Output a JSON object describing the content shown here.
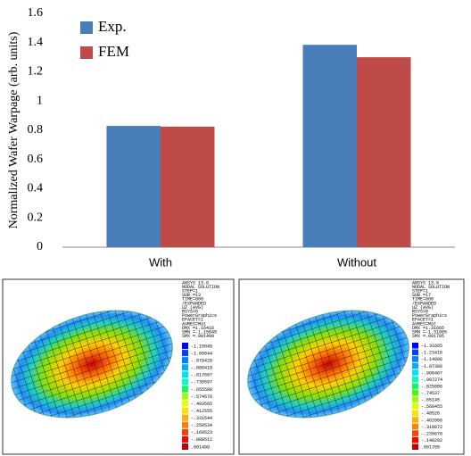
{
  "chart_data": {
    "type": "bar",
    "y_label": "Normalized Wafer Warpage (arb. units)",
    "categories": [
      "With",
      "Without"
    ],
    "series": [
      {
        "name": "Exp.",
        "color": "#4a7ebb",
        "values": [
          0.83,
          1.385
        ]
      },
      {
        "name": "FEM",
        "color": "#be4b48",
        "values": [
          0.825,
          1.3
        ]
      }
    ],
    "ylim": [
      0,
      1.6
    ],
    "yticks": [
      0,
      0.2,
      0.4,
      0.6,
      0.8,
      1,
      1.2,
      1.4,
      1.6
    ],
    "legend": "top-left"
  },
  "fem_panels": [
    {
      "header": [
        "ANSYS 13.0",
        "NODAL SOLUTION",
        "STEP=1",
        "SUB =13",
        "TIME=800",
        "/EXPANDED",
        "UZ        (AVG)",
        "RSYS=0",
        "PowerGraphics",
        "EFACET=1",
        "AVRES=Mat",
        "DMX =1.16416",
        "SMN =-1.15045",
        "SMX =.001499"
      ],
      "legend": [
        "-1.15045",
        "-1.06044",
        "-.979428",
        "-.888418",
        "-.817607",
        "-.736597",
        "-.655588",
        "-.574576",
        "-.493565",
        "-.412555",
        "-.331544",
        "-.250534",
        "-.169523",
        "-.088512",
        ".001499"
      ]
    },
    {
      "header": [
        "ANSYS 13.0",
        "NODAL SOLUTION",
        "STEP=1",
        "SUB =17",
        "TIME=800",
        "/EXPANDED",
        "UZ        (AVG)",
        "RSYS=0",
        "PowerGraphics",
        "EFACET=1",
        "AVRES=Mat",
        "DMX =1.31665",
        "SMN =-1.31665",
        "SMX =.001705"
      ],
      "legend": [
        "-1.31665",
        "-1.23416",
        "-1.14806",
        "-1.07386",
        "-.990467",
        "-.907274",
        "-.825886",
        "-.74537",
        "-.65145",
        "-.568455",
        "-.48526",
        "-.402066",
        "-.318872",
        "-.235678",
        "-.140292",
        ".001705"
      ]
    }
  ]
}
